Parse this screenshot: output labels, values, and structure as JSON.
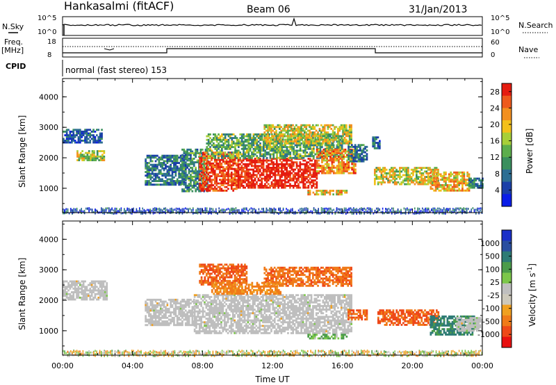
{
  "header": {
    "station": "Hankasalmi (fitACF)",
    "beam": "Beam 06",
    "date": "31/Jan/2013"
  },
  "panel_labels": {
    "nsky": "N.Sky",
    "nsearch": "N.Search",
    "freq": "Freq.",
    "freq_unit": "[MHz]",
    "nave": "Nave",
    "cpid": "CPID",
    "nsky_top": "10^5",
    "nsky_bot": "10^0",
    "nsearch_top": "10^5",
    "nsearch_bot": "10^0",
    "freq_top": "18",
    "freq_bot": "8",
    "nave_top": "60",
    "nave_bot": "0"
  },
  "cpid_text": "normal (fast stereo) 153",
  "colors": {
    "power": [
      "#0a1de8",
      "#1a3fa8",
      "#2c6e93",
      "#3a8f5e",
      "#5cae4c",
      "#a8cf38",
      "#f3c01a",
      "#f39020",
      "#ee5a1c",
      "#e51c10",
      "#e00a0a"
    ],
    "velocity": [
      "#e81010",
      "#ee4818",
      "#f07a18",
      "#f0a020",
      "#cdc9bb",
      "#bfbfbf",
      "#7cc74a",
      "#4b9c4a",
      "#2d7b75",
      "#2a4fa0",
      "#1a2fc8"
    ],
    "ground_scatter": "#bebebe"
  },
  "chart_data": [
    {
      "type": "heatmap",
      "title": "",
      "ylabel": "Slant Range [km]",
      "xlabel": "",
      "x_ticks": [
        "00:00",
        "04:00",
        "08:00",
        "12:00",
        "16:00",
        "20:00",
        "00:00"
      ],
      "y_ticks": [
        "1000",
        "2000",
        "3000",
        "4000"
      ],
      "xlim": [
        0,
        24
      ],
      "ylim": [
        200,
        4600
      ],
      "colorbar": {
        "label": "Power [dB]",
        "ticks": [
          "4",
          "8",
          "12",
          "16",
          "20",
          "24",
          "28"
        ],
        "range": [
          0,
          30
        ]
      },
      "regions": [
        {
          "t0": 0.0,
          "t1": 2.2,
          "r0": 2500,
          "r1": 2950,
          "level": 8
        },
        {
          "t0": 0.8,
          "t1": 2.4,
          "r0": 1950,
          "r1": 2250,
          "level": 17
        },
        {
          "t0": 4.7,
          "t1": 7.0,
          "r0": 1100,
          "r1": 2100,
          "level": 10
        },
        {
          "t0": 6.8,
          "t1": 8.3,
          "r0": 900,
          "r1": 2300,
          "level": 12
        },
        {
          "t0": 7.8,
          "t1": 10.0,
          "r0": 900,
          "r1": 2200,
          "level": 26
        },
        {
          "t0": 10.0,
          "t1": 14.5,
          "r0": 1000,
          "r1": 2000,
          "level": 28
        },
        {
          "t0": 8.2,
          "t1": 16.0,
          "r0": 2000,
          "r1": 2800,
          "level": 14
        },
        {
          "t0": 11.5,
          "t1": 16.5,
          "r0": 2500,
          "r1": 3100,
          "level": 18
        },
        {
          "t0": 14.5,
          "t1": 16.7,
          "r0": 1500,
          "r1": 2300,
          "level": 22
        },
        {
          "t0": 16.3,
          "t1": 17.4,
          "r0": 1900,
          "r1": 2450,
          "level": 10
        },
        {
          "t0": 14.0,
          "t1": 16.2,
          "r0": 800,
          "r1": 950,
          "level": 20
        },
        {
          "t0": 17.8,
          "t1": 21.5,
          "r0": 1150,
          "r1": 1700,
          "level": 18
        },
        {
          "t0": 21.0,
          "t1": 23.2,
          "r0": 900,
          "r1": 1550,
          "level": 20
        },
        {
          "t0": 23.2,
          "t1": 24.0,
          "r0": 1000,
          "r1": 1350,
          "level": 10
        },
        {
          "t0": 17.7,
          "t1": 18.1,
          "r0": 2300,
          "r1": 2700,
          "level": 8
        }
      ]
    },
    {
      "type": "heatmap",
      "title": "",
      "ylabel": "Slant Range [km]",
      "xlabel": "Time UT",
      "x_ticks": [
        "00:00",
        "04:00",
        "08:00",
        "12:00",
        "16:00",
        "20:00",
        "00:00"
      ],
      "y_ticks": [
        "1000",
        "2000",
        "3000",
        "4000"
      ],
      "xlim": [
        0,
        24
      ],
      "ylim": [
        200,
        4600
      ],
      "colorbar": {
        "label": "Velocity [m s-1]",
        "ticks": [
          "1000",
          "500",
          "100",
          "25",
          "-25",
          "-100",
          "-500",
          "-1000"
        ],
        "range": [
          -1200,
          1200
        ]
      },
      "regions": [
        {
          "t0": 0.0,
          "t1": 2.5,
          "r0": 2050,
          "r1": 2650,
          "level": 0,
          "ground_scatter": true
        },
        {
          "t0": 4.7,
          "t1": 7.5,
          "r0": 1200,
          "r1": 2050,
          "level": 0,
          "ground_scatter": true
        },
        {
          "t0": 7.5,
          "t1": 16.5,
          "r0": 900,
          "r1": 2200,
          "level": 0,
          "ground_scatter": true
        },
        {
          "t0": 7.8,
          "t1": 10.5,
          "r0": 2500,
          "r1": 3200,
          "level": -300
        },
        {
          "t0": 11.5,
          "t1": 16.5,
          "r0": 2500,
          "r1": 3100,
          "level": -250
        },
        {
          "t0": 8.5,
          "t1": 12.5,
          "r0": 2200,
          "r1": 2600,
          "level": -150
        },
        {
          "t0": 16.3,
          "t1": 17.4,
          "r0": 1350,
          "r1": 1700,
          "level": -300
        },
        {
          "t0": 14.0,
          "t1": 16.2,
          "r0": 750,
          "r1": 900,
          "level": 80
        },
        {
          "t0": 18.0,
          "t1": 21.5,
          "r0": 1200,
          "r1": 1700,
          "level": -350
        },
        {
          "t0": 21.0,
          "t1": 23.5,
          "r0": 900,
          "r1": 1500,
          "level": 400
        },
        {
          "t0": 22.5,
          "t1": 24.0,
          "r0": 1000,
          "r1": 1450,
          "level": 0,
          "ground_scatter": true
        }
      ]
    }
  ]
}
